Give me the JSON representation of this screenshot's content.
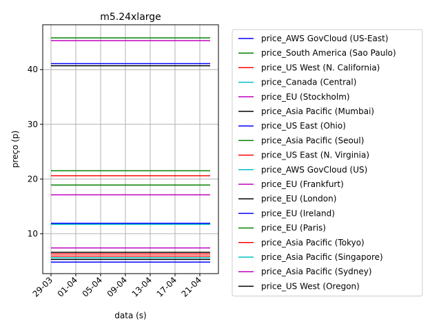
{
  "chart_data": {
    "type": "line",
    "title": "m5.24xlarge",
    "xlabel": "data (s)",
    "ylabel": "preço (p)",
    "x_tick_labels": [
      "29-03",
      "01-04",
      "05-04",
      "09-04",
      "13-04",
      "17-04",
      "21-04"
    ],
    "y_ticks": [
      10,
      20,
      30,
      40
    ],
    "ylim": [
      2.7,
      48.2
    ],
    "grid": true,
    "legend_position": "right-outside",
    "series": [
      {
        "name": "price_AWS GovCloud (US-East)",
        "color": "#0000ff",
        "y": 41.1
      },
      {
        "name": "price_South America (Sao Paulo)",
        "color": "#008000",
        "y": 45.8
      },
      {
        "name": "price_US West (N. California)",
        "color": "#ff0000",
        "y": 5.9
      },
      {
        "name": "price_Canada (Central)",
        "color": "#00bfbf",
        "y": 11.9
      },
      {
        "name": "price_EU (Stockholm)",
        "color": "#bf00bf",
        "y": 45.3
      },
      {
        "name": "price_Asia Pacific (Mumbai)",
        "color": "#000000",
        "y": 40.7
      },
      {
        "name": "price_US East (Ohio)",
        "color": "#0000ff",
        "y": 4.8
      },
      {
        "name": "price_Asia Pacific (Seoul)",
        "color": "#008000",
        "y": 21.5
      },
      {
        "name": "price_US East (N. Virginia)",
        "color": "#ff0000",
        "y": 20.6
      },
      {
        "name": "price_AWS GovCloud (US)",
        "color": "#00bfbf",
        "y": 11.7
      },
      {
        "name": "price_EU (Frankfurt)",
        "color": "#bf00bf",
        "y": 17.1
      },
      {
        "name": "price_EU (London)",
        "color": "#000000",
        "y": 6.6
      },
      {
        "name": "price_EU (Ireland)",
        "color": "#0000ff",
        "y": 11.9
      },
      {
        "name": "price_EU (Paris)",
        "color": "#008000",
        "y": 18.9
      },
      {
        "name": "price_Asia Pacific (Tokyo)",
        "color": "#ff0000",
        "y": 6.3
      },
      {
        "name": "price_Asia Pacific (Singapore)",
        "color": "#00bfbf",
        "y": 5.6
      },
      {
        "name": "price_Asia Pacific (Sydney)",
        "color": "#bf00bf",
        "y": 7.4
      },
      {
        "name": "price_US West (Oregon)",
        "color": "#000000",
        "y": 5.3
      }
    ]
  }
}
